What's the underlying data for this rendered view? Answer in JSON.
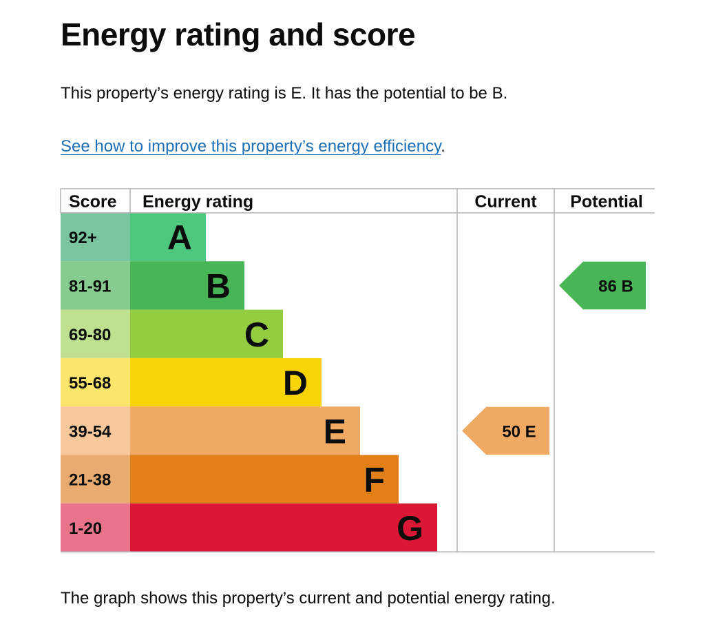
{
  "page": {
    "title": "Energy rating and score",
    "summary": "This property’s energy rating is E. It has the potential to be B.",
    "link_text": "See how to improve this property’s energy efficiency",
    "link_suffix": ".",
    "footer": "The graph shows this property’s current and potential energy rating."
  },
  "chart_data": {
    "type": "bar",
    "headers": {
      "score": "Score",
      "rating": "Energy rating",
      "current": "Current",
      "potential": "Potential"
    },
    "bands": [
      {
        "letter": "A",
        "range": "92+",
        "color": "#4fc87f",
        "score_bg": "#78c5a0",
        "value": 1
      },
      {
        "letter": "B",
        "range": "81-91",
        "color": "#48b556",
        "score_bg": "#85cc8e",
        "value": 2
      },
      {
        "letter": "C",
        "range": "69-80",
        "color": "#94cd3f",
        "score_bg": "#bfe18f",
        "value": 3
      },
      {
        "letter": "D",
        "range": "55-68",
        "color": "#f8d405",
        "score_bg": "#fbe56a",
        "value": 4
      },
      {
        "letter": "E",
        "range": "39-54",
        "color": "#f0a963",
        "score_bg": "#f6c89c",
        "value": 5
      },
      {
        "letter": "F",
        "range": "21-38",
        "color": "#e27f18",
        "score_bg": "#eaab70",
        "value": 6
      },
      {
        "letter": "G",
        "range": "1-20",
        "color": "#da1735",
        "score_bg": "#e8738a",
        "value": 7
      }
    ],
    "current": {
      "score": "50",
      "letter": "E",
      "band_index": 4,
      "color": "#f0a963"
    },
    "potential": {
      "score": "86",
      "letter": "B",
      "band_index": 1,
      "color": "#48b556"
    }
  }
}
